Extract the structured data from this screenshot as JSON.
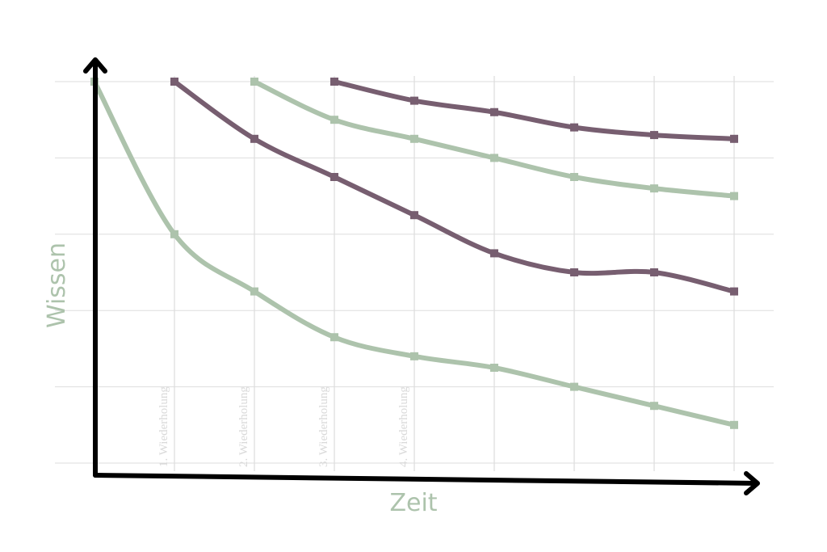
{
  "chart_data": {
    "type": "line",
    "xlabel": "Zeit",
    "ylabel": "Wissen",
    "x": [
      1,
      2,
      3,
      4,
      5,
      6,
      7,
      8,
      9
    ],
    "xlim": [
      1,
      9
    ],
    "ylim": [
      0,
      5
    ],
    "grid": true,
    "annotations": [
      "1. Wiederholung",
      "2. Wiederholung",
      "3. Wiederholung",
      "4. Wiederholung"
    ],
    "series": [
      {
        "color": "#adc3ac",
        "points": [
          [
            1,
            5.0
          ],
          [
            2,
            3.0
          ],
          [
            3,
            2.25
          ],
          [
            4,
            1.65
          ],
          [
            5,
            1.4
          ],
          [
            6,
            1.25
          ],
          [
            7,
            1.0
          ],
          [
            8,
            0.75
          ],
          [
            9,
            0.5
          ]
        ]
      },
      {
        "color": "#775e70",
        "points": [
          [
            2,
            5.0
          ],
          [
            3,
            4.25
          ],
          [
            4,
            3.75
          ],
          [
            5,
            3.25
          ],
          [
            6,
            2.75
          ],
          [
            7,
            2.5
          ],
          [
            8,
            2.5
          ],
          [
            9,
            2.25
          ]
        ]
      },
      {
        "color": "#adc3ac",
        "points": [
          [
            3,
            5.0
          ],
          [
            4,
            4.5
          ],
          [
            5,
            4.25
          ],
          [
            6,
            4.0
          ],
          [
            7,
            3.75
          ],
          [
            8,
            3.6
          ],
          [
            9,
            3.5
          ]
        ]
      },
      {
        "color": "#775e70",
        "points": [
          [
            4,
            5.0
          ],
          [
            5,
            4.75
          ],
          [
            6,
            4.6
          ],
          [
            7,
            4.4
          ],
          [
            8,
            4.3
          ],
          [
            9,
            4.25
          ]
        ]
      }
    ],
    "colors": {
      "axis": "#000000",
      "grid": "#dedede",
      "label": "#adc3ac",
      "annotation": "#d9d9d9"
    }
  }
}
